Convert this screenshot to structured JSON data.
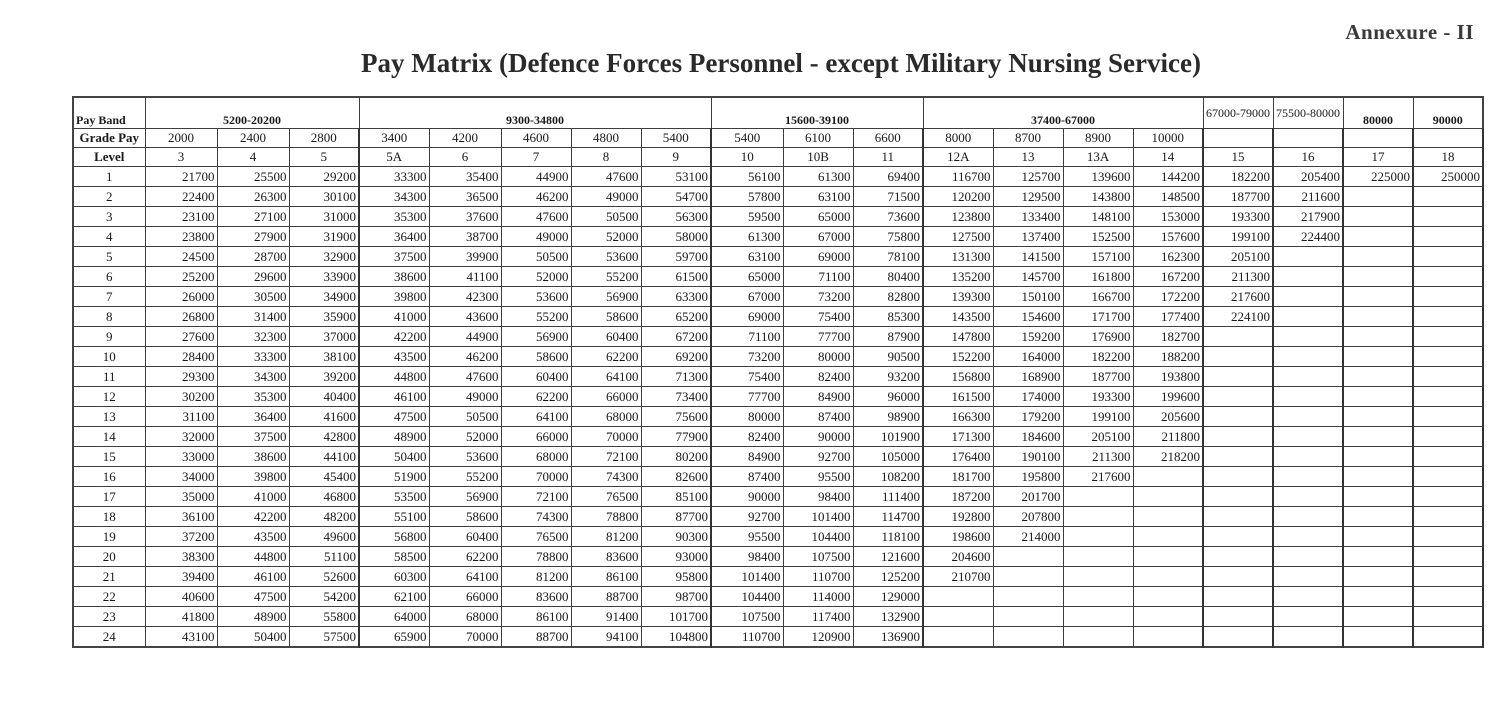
{
  "header": {
    "annexure": "Annexure - II",
    "title": "Pay Matrix (Defence Forces Personnel - except Military Nursing Service)"
  },
  "table": {
    "row_labels": {
      "pay_band": "Pay Band",
      "grade_pay": "Grade Pay",
      "level": "Level"
    },
    "pay_bands": [
      {
        "label": "5200-20200",
        "span": 3
      },
      {
        "label": "9300-34800",
        "span": 5
      },
      {
        "label": "15600-39100",
        "span": 3
      },
      {
        "label": "37400-67000",
        "span": 4
      },
      {
        "label": "67000-79000",
        "span": 1
      },
      {
        "label": "75500-80000",
        "span": 1
      },
      {
        "label": "80000",
        "span": 1
      },
      {
        "label": "90000",
        "span": 1
      }
    ],
    "grade_pays": [
      "2000",
      "2400",
      "2800",
      "3400",
      "4200",
      "4600",
      "4800",
      "5400",
      "5400",
      "6100",
      "6600",
      "8000",
      "8700",
      "8900",
      "10000",
      "",
      "",
      "",
      ""
    ],
    "levels": [
      "3",
      "4",
      "5",
      "5A",
      "6",
      "7",
      "8",
      "9",
      "10",
      "10B",
      "11",
      "12A",
      "13",
      "13A",
      "14",
      "15",
      "16",
      "17",
      "18"
    ],
    "rows": [
      {
        "index": "1",
        "cells": [
          "21700",
          "25500",
          "29200",
          "33300",
          "35400",
          "44900",
          "47600",
          "53100",
          "56100",
          "61300",
          "69400",
          "116700",
          "125700",
          "139600",
          "144200",
          "182200",
          "205400",
          "225000",
          "250000"
        ]
      },
      {
        "index": "2",
        "cells": [
          "22400",
          "26300",
          "30100",
          "34300",
          "36500",
          "46200",
          "49000",
          "54700",
          "57800",
          "63100",
          "71500",
          "120200",
          "129500",
          "143800",
          "148500",
          "187700",
          "211600",
          "",
          ""
        ]
      },
      {
        "index": "3",
        "cells": [
          "23100",
          "27100",
          "31000",
          "35300",
          "37600",
          "47600",
          "50500",
          "56300",
          "59500",
          "65000",
          "73600",
          "123800",
          "133400",
          "148100",
          "153000",
          "193300",
          "217900",
          "",
          ""
        ]
      },
      {
        "index": "4",
        "cells": [
          "23800",
          "27900",
          "31900",
          "36400",
          "38700",
          "49000",
          "52000",
          "58000",
          "61300",
          "67000",
          "75800",
          "127500",
          "137400",
          "152500",
          "157600",
          "199100",
          "224400",
          "",
          ""
        ]
      },
      {
        "index": "5",
        "cells": [
          "24500",
          "28700",
          "32900",
          "37500",
          "39900",
          "50500",
          "53600",
          "59700",
          "63100",
          "69000",
          "78100",
          "131300",
          "141500",
          "157100",
          "162300",
          "205100",
          "",
          "",
          ""
        ]
      },
      {
        "index": "6",
        "cells": [
          "25200",
          "29600",
          "33900",
          "38600",
          "41100",
          "52000",
          "55200",
          "61500",
          "65000",
          "71100",
          "80400",
          "135200",
          "145700",
          "161800",
          "167200",
          "211300",
          "",
          "",
          ""
        ]
      },
      {
        "index": "7",
        "cells": [
          "26000",
          "30500",
          "34900",
          "39800",
          "42300",
          "53600",
          "56900",
          "63300",
          "67000",
          "73200",
          "82800",
          "139300",
          "150100",
          "166700",
          "172200",
          "217600",
          "",
          "",
          ""
        ]
      },
      {
        "index": "8",
        "cells": [
          "26800",
          "31400",
          "35900",
          "41000",
          "43600",
          "55200",
          "58600",
          "65200",
          "69000",
          "75400",
          "85300",
          "143500",
          "154600",
          "171700",
          "177400",
          "224100",
          "",
          "",
          ""
        ]
      },
      {
        "index": "9",
        "cells": [
          "27600",
          "32300",
          "37000",
          "42200",
          "44900",
          "56900",
          "60400",
          "67200",
          "71100",
          "77700",
          "87900",
          "147800",
          "159200",
          "176900",
          "182700",
          "",
          "",
          "",
          ""
        ]
      },
      {
        "index": "10",
        "cells": [
          "28400",
          "33300",
          "38100",
          "43500",
          "46200",
          "58600",
          "62200",
          "69200",
          "73200",
          "80000",
          "90500",
          "152200",
          "164000",
          "182200",
          "188200",
          "",
          "",
          "",
          ""
        ]
      },
      {
        "index": "11",
        "cells": [
          "29300",
          "34300",
          "39200",
          "44800",
          "47600",
          "60400",
          "64100",
          "71300",
          "75400",
          "82400",
          "93200",
          "156800",
          "168900",
          "187700",
          "193800",
          "",
          "",
          "",
          ""
        ]
      },
      {
        "index": "12",
        "cells": [
          "30200",
          "35300",
          "40400",
          "46100",
          "49000",
          "62200",
          "66000",
          "73400",
          "77700",
          "84900",
          "96000",
          "161500",
          "174000",
          "193300",
          "199600",
          "",
          "",
          "",
          ""
        ]
      },
      {
        "index": "13",
        "cells": [
          "31100",
          "36400",
          "41600",
          "47500",
          "50500",
          "64100",
          "68000",
          "75600",
          "80000",
          "87400",
          "98900",
          "166300",
          "179200",
          "199100",
          "205600",
          "",
          "",
          "",
          ""
        ]
      },
      {
        "index": "14",
        "cells": [
          "32000",
          "37500",
          "42800",
          "48900",
          "52000",
          "66000",
          "70000",
          "77900",
          "82400",
          "90000",
          "101900",
          "171300",
          "184600",
          "205100",
          "211800",
          "",
          "",
          "",
          ""
        ]
      },
      {
        "index": "15",
        "cells": [
          "33000",
          "38600",
          "44100",
          "50400",
          "53600",
          "68000",
          "72100",
          "80200",
          "84900",
          "92700",
          "105000",
          "176400",
          "190100",
          "211300",
          "218200",
          "",
          "",
          "",
          ""
        ]
      },
      {
        "index": "16",
        "cells": [
          "34000",
          "39800",
          "45400",
          "51900",
          "55200",
          "70000",
          "74300",
          "82600",
          "87400",
          "95500",
          "108200",
          "181700",
          "195800",
          "217600",
          "",
          "",
          "",
          "",
          ""
        ]
      },
      {
        "index": "17",
        "cells": [
          "35000",
          "41000",
          "46800",
          "53500",
          "56900",
          "72100",
          "76500",
          "85100",
          "90000",
          "98400",
          "111400",
          "187200",
          "201700",
          "",
          "",
          "",
          "",
          "",
          ""
        ]
      },
      {
        "index": "18",
        "cells": [
          "36100",
          "42200",
          "48200",
          "55100",
          "58600",
          "74300",
          "78800",
          "87700",
          "92700",
          "101400",
          "114700",
          "192800",
          "207800",
          "",
          "",
          "",
          "",
          "",
          ""
        ]
      },
      {
        "index": "19",
        "cells": [
          "37200",
          "43500",
          "49600",
          "56800",
          "60400",
          "76500",
          "81200",
          "90300",
          "95500",
          "104400",
          "118100",
          "198600",
          "214000",
          "",
          "",
          "",
          "",
          "",
          ""
        ]
      },
      {
        "index": "20",
        "cells": [
          "38300",
          "44800",
          "51100",
          "58500",
          "62200",
          "78800",
          "83600",
          "93000",
          "98400",
          "107500",
          "121600",
          "204600",
          "",
          "",
          "",
          "",
          "",
          "",
          ""
        ]
      },
      {
        "index": "21",
        "cells": [
          "39400",
          "46100",
          "52600",
          "60300",
          "64100",
          "81200",
          "86100",
          "95800",
          "101400",
          "110700",
          "125200",
          "210700",
          "",
          "",
          "",
          "",
          "",
          "",
          ""
        ]
      },
      {
        "index": "22",
        "cells": [
          "40600",
          "47500",
          "54200",
          "62100",
          "66000",
          "83600",
          "88700",
          "98700",
          "104400",
          "114000",
          "129000",
          "",
          "",
          "",
          "",
          "",
          "",
          "",
          ""
        ]
      },
      {
        "index": "23",
        "cells": [
          "41800",
          "48900",
          "55800",
          "64000",
          "68000",
          "86100",
          "91400",
          "101700",
          "107500",
          "117400",
          "132900",
          "",
          "",
          "",
          "",
          "",
          "",
          "",
          ""
        ]
      },
      {
        "index": "24",
        "cells": [
          "43100",
          "50400",
          "57500",
          "65900",
          "70000",
          "88700",
          "94100",
          "104800",
          "110700",
          "120900",
          "136900",
          "",
          "",
          "",
          "",
          "",
          "",
          "",
          ""
        ]
      }
    ]
  }
}
